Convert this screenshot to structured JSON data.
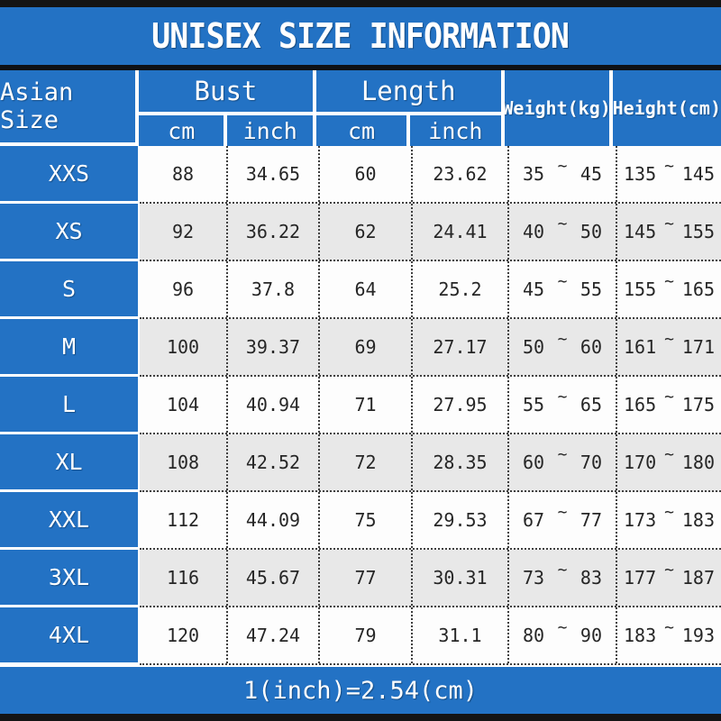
{
  "colors": {
    "accent_blue": "#2372c4",
    "alt_row_gray": "#e8e8e8",
    "frame_black": "#141414",
    "text_white": "#ffffff",
    "cell_text": "#262626"
  },
  "title": "UNISEX SIZE INFORMATION",
  "header": {
    "size_column": "Asian Size",
    "bust": {
      "label": "Bust",
      "sub_cm": "cm",
      "sub_inch": "inch"
    },
    "length": {
      "label": "Length",
      "sub_cm": "cm",
      "sub_inch": "inch"
    },
    "weight": "Weight(kg)",
    "height": "Height(cm)"
  },
  "range_separator": "~",
  "rows": [
    {
      "size": "XXS",
      "bust_cm": "88",
      "bust_inch": "34.65",
      "length_cm": "60",
      "length_inch": "23.62",
      "weight_min": "35",
      "weight_max": "45",
      "height_min": "135",
      "height_max": "145"
    },
    {
      "size": "XS",
      "bust_cm": "92",
      "bust_inch": "36.22",
      "length_cm": "62",
      "length_inch": "24.41",
      "weight_min": "40",
      "weight_max": "50",
      "height_min": "145",
      "height_max": "155"
    },
    {
      "size": "S",
      "bust_cm": "96",
      "bust_inch": "37.8",
      "length_cm": "64",
      "length_inch": "25.2",
      "weight_min": "45",
      "weight_max": "55",
      "height_min": "155",
      "height_max": "165"
    },
    {
      "size": "M",
      "bust_cm": "100",
      "bust_inch": "39.37",
      "length_cm": "69",
      "length_inch": "27.17",
      "weight_min": "50",
      "weight_max": "60",
      "height_min": "161",
      "height_max": "171"
    },
    {
      "size": "L",
      "bust_cm": "104",
      "bust_inch": "40.94",
      "length_cm": "71",
      "length_inch": "27.95",
      "weight_min": "55",
      "weight_max": "65",
      "height_min": "165",
      "height_max": "175"
    },
    {
      "size": "XL",
      "bust_cm": "108",
      "bust_inch": "42.52",
      "length_cm": "72",
      "length_inch": "28.35",
      "weight_min": "60",
      "weight_max": "70",
      "height_min": "170",
      "height_max": "180"
    },
    {
      "size": "XXL",
      "bust_cm": "112",
      "bust_inch": "44.09",
      "length_cm": "75",
      "length_inch": "29.53",
      "weight_min": "67",
      "weight_max": "77",
      "height_min": "173",
      "height_max": "183"
    },
    {
      "size": "3XL",
      "bust_cm": "116",
      "bust_inch": "45.67",
      "length_cm": "77",
      "length_inch": "30.31",
      "weight_min": "73",
      "weight_max": "83",
      "height_min": "177",
      "height_max": "187"
    },
    {
      "size": "4XL",
      "bust_cm": "120",
      "bust_inch": "47.24",
      "length_cm": "79",
      "length_inch": "31.1",
      "weight_min": "80",
      "weight_max": "90",
      "height_min": "183",
      "height_max": "193"
    }
  ],
  "footer_note": "1(inch)=2.54(cm)",
  "chart_data": {
    "type": "table",
    "title": "UNISEX SIZE INFORMATION",
    "columns": [
      "Asian Size",
      "Bust cm",
      "Bust inch",
      "Length cm",
      "Length inch",
      "Weight(kg)",
      "Height(cm)"
    ],
    "rows": [
      [
        "XXS",
        88,
        34.65,
        60,
        23.62,
        "35~45",
        "135~145"
      ],
      [
        "XS",
        92,
        36.22,
        62,
        24.41,
        "40~50",
        "145~155"
      ],
      [
        "S",
        96,
        37.8,
        64,
        25.2,
        "45~55",
        "155~165"
      ],
      [
        "M",
        100,
        39.37,
        69,
        27.17,
        "50~60",
        "161~171"
      ],
      [
        "L",
        104,
        40.94,
        71,
        27.95,
        "55~65",
        "165~175"
      ],
      [
        "XL",
        108,
        42.52,
        72,
        28.35,
        "60~70",
        "170~180"
      ],
      [
        "XXL",
        112,
        44.09,
        75,
        29.53,
        "67~77",
        "173~183"
      ],
      [
        "3XL",
        116,
        45.67,
        77,
        30.31,
        "73~83",
        "177~187"
      ],
      [
        "4XL",
        120,
        47.24,
        79,
        31.1,
        "80~90",
        "183~193"
      ]
    ],
    "footnote": "1(inch)=2.54(cm)"
  }
}
